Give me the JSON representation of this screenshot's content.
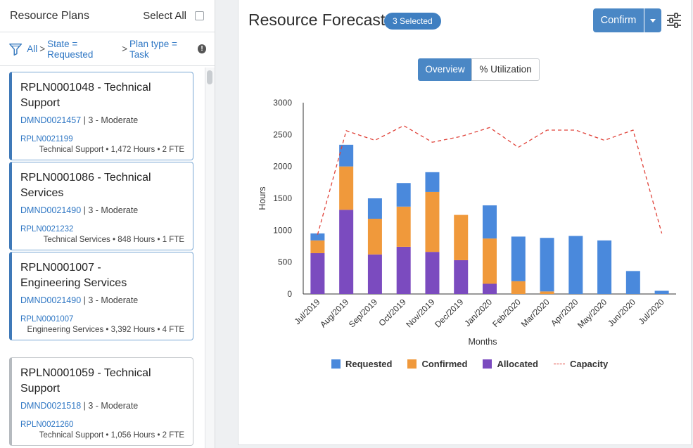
{
  "left_panel": {
    "title": "Resource Plans",
    "select_all_label": "Select All",
    "filter": {
      "all": "All",
      "sep1": ">",
      "state": "State = Requested",
      "sep2": ">",
      "plan_type": "Plan type = Task",
      "info": "!"
    },
    "cards": [
      {
        "title": "RPLN0001048 - Technical Support",
        "demand": "DMND0021457",
        "priority": "| 3 - Moderate",
        "plan": "RPLN0021199",
        "meta": "Technical Support • 1,472 Hours • 2 FTE"
      },
      {
        "title": "RPLN0001086 - Technical Services",
        "demand": "DMND0021490",
        "priority": "| 3 - Moderate",
        "plan": "RPLN0021232",
        "meta": "Technical Services • 848 Hours • 1 FTE"
      },
      {
        "title": "RPLN0001007 - Engineering Services",
        "demand": "DMND0021490",
        "priority": "| 3 - Moderate",
        "plan": "RPLN0001007",
        "meta": "Engineering Services • 3,392 Hours • 4 FTE"
      },
      {
        "title": "RPLN0001059 - Technical Support",
        "demand": "DMND0021518",
        "priority": "| 3 - Moderate",
        "plan": "RPLN0021260",
        "meta": "Technical Support • 1,056 Hours • 2 FTE"
      }
    ]
  },
  "header": {
    "title": "Resource Forecast",
    "selected_badge": "3 Selected",
    "confirm_label": "Confirm"
  },
  "tabs": {
    "overview": "Overview",
    "utilization": "% Utilization"
  },
  "colors": {
    "requested": "#4a89dc",
    "confirmed": "#f0993b",
    "allocated": "#7b4bbf",
    "capacity": "#e0433a"
  },
  "chart_data": {
    "type": "bar",
    "stacked": true,
    "xlabel": "Months",
    "ylabel": "Hours",
    "ylim": [
      0,
      3000
    ],
    "yticks": [
      0,
      500,
      1000,
      1500,
      2000,
      2500,
      3000
    ],
    "categories": [
      "Jul/2019",
      "Aug/2019",
      "Sep/2019",
      "Oct/2019",
      "Nov/2019",
      "Dec/2019",
      "Jan/2020",
      "Feb/2020",
      "Mar/2020",
      "Apr/2020",
      "May/2020",
      "Jun/2020",
      "Jul/2020"
    ],
    "series": [
      {
        "name": "Allocated",
        "values": [
          640,
          1320,
          620,
          740,
          660,
          530,
          160,
          0,
          0,
          0,
          0,
          0,
          0
        ]
      },
      {
        "name": "Confirmed",
        "values": [
          200,
          680,
          560,
          630,
          940,
          710,
          710,
          200,
          40,
          0,
          0,
          0,
          0
        ]
      },
      {
        "name": "Requested",
        "values": [
          110,
          340,
          320,
          370,
          310,
          0,
          520,
          700,
          840,
          910,
          840,
          360,
          50
        ]
      },
      {
        "name": "Capacity",
        "type": "line",
        "values": [
          930,
          2560,
          2410,
          2640,
          2380,
          2470,
          2610,
          2300,
          2570,
          2570,
          2410,
          2570,
          950
        ]
      }
    ],
    "legend": [
      "Requested",
      "Confirmed",
      "Allocated",
      "Capacity"
    ],
    "legend_position": "bottom"
  }
}
